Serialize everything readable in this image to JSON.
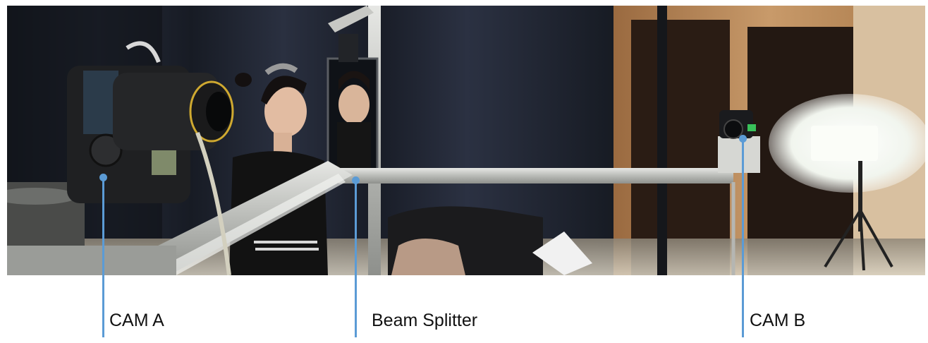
{
  "figure": {
    "labels": [
      {
        "id": "cam-a",
        "text": "CAM A"
      },
      {
        "id": "beam-splitter",
        "text": "Beam Splitter"
      },
      {
        "id": "cam-b",
        "text": "CAM B"
      }
    ],
    "colors": {
      "pointer": "#5b9bd5",
      "label_text": "#111111",
      "curtain": "#1f2432",
      "wood": "#b8875a",
      "rail": "#c9cbc8"
    }
  }
}
